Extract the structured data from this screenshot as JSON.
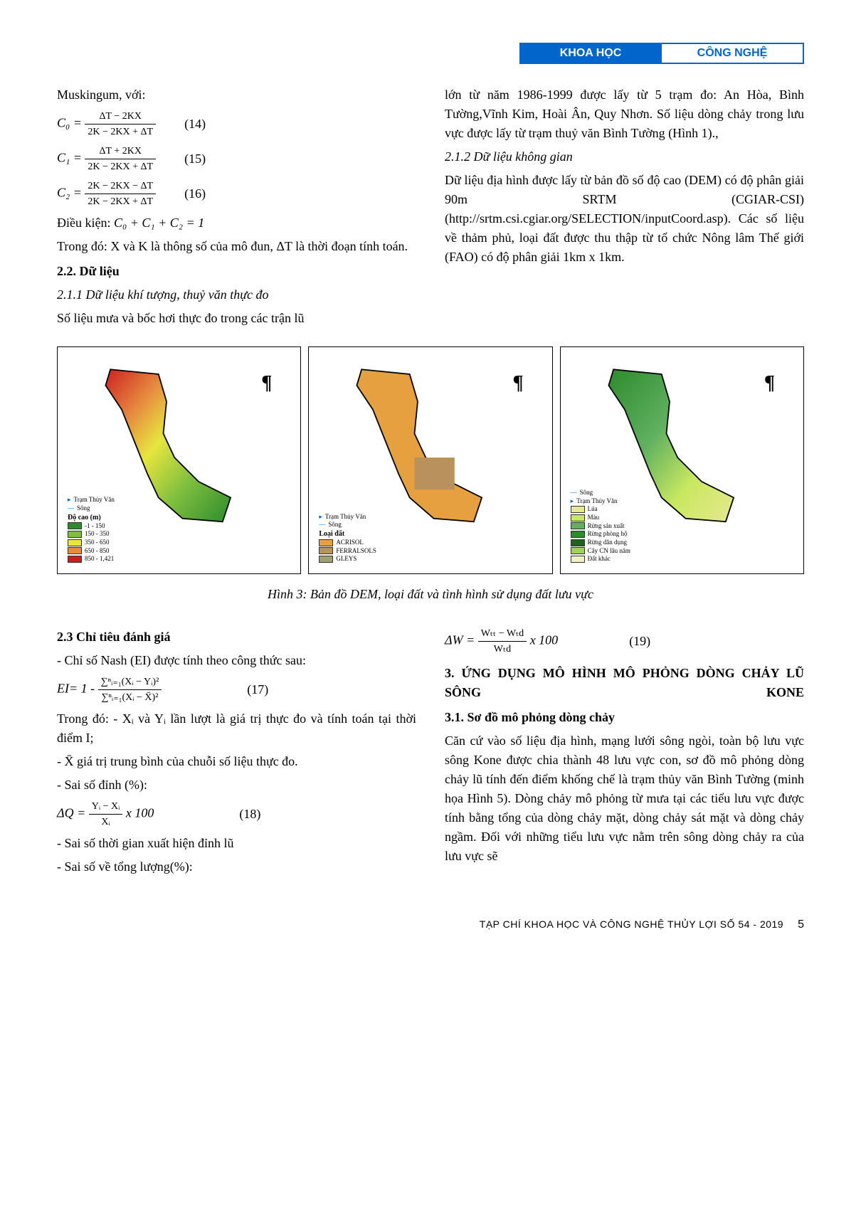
{
  "header": {
    "left": "KHOA HỌC",
    "right": "CÔNG NGHỆ",
    "bg_left": "#0066cc",
    "bg_right": "#ffffff",
    "border_color": "#0066cc"
  },
  "top_left_column": {
    "intro": "Muskingum, với:",
    "eq14": {
      "lhs": "C₀ =",
      "num": "ΔT − 2KX",
      "den": "2K − 2KX + ΔT",
      "n": "(14)"
    },
    "eq15": {
      "lhs": "C₁ =",
      "num": "ΔT + 2KX",
      "den": "2K − 2KX + ΔT",
      "n": "(15)"
    },
    "eq16": {
      "lhs": "C₂ =",
      "num": "2K − 2KX − ΔT",
      "den": "2K − 2KX + ΔT",
      "n": "(16)"
    },
    "condition_label": "Điều kiện:",
    "condition": "C₀ + C₁ + C₂ = 1",
    "where": "Trong đó: X và K là thông số của mô đun, ΔT là thời đoạn tính toán.",
    "sec22": "2.2. Dữ liệu",
    "sub211": "2.1.1 Dữ liệu khí tượng, thuỷ văn thực đo",
    "p211": "Số liệu mưa và bốc hơi thực đo trong các trận lũ"
  },
  "top_right_column": {
    "p1": "lớn từ năm 1986-1999 được lấy từ 5 trạm đo: An Hòa, Bình Tường,Vĩnh Kim, Hoài Ân, Quy Nhơn. Số liệu dòng chảy trong lưu vực được lấy từ trạm thuỷ văn Bình Tường (Hình 1).,",
    "sub212": "2.1.2 Dữ liệu không gian",
    "p212": "Dữ liệu địa hình được lấy từ bản đồ số độ cao (DEM) có độ phân giải 90m SRTM (CGIAR-CSI) (http://srtm.csi.cgiar.org/SELECTION/inputCoord.asp). Các số liệu về thảm phủ, loại đất được thu thập từ tổ chức Nông lâm Thế giới (FAO) có độ phân giải 1km x 1km."
  },
  "figure": {
    "caption": "Hình 3: Bản đồ DEM, loại đất và tình hình sử dụng đất lưu vực",
    "panels": [
      {
        "type": "dem_map",
        "legend_title": "Độ cao (m)",
        "legend_extra": [
          "Trạm Thủy Văn",
          "Sông"
        ],
        "items": [
          {
            "label": "-1 - 150",
            "color": "#2d8b2d"
          },
          {
            "label": "150 - 350",
            "color": "#7fbf3f"
          },
          {
            "label": "350 - 650",
            "color": "#e6e63f"
          },
          {
            "label": "650 - 850",
            "color": "#e68a3f"
          },
          {
            "label": "850 - 1,421",
            "color": "#cc2020"
          }
        ],
        "main_colors": [
          "#cc2020",
          "#e68a3f",
          "#e6e63f",
          "#7fbf3f",
          "#2d8b2d"
        ]
      },
      {
        "type": "soil_map",
        "legend_title": "Loại đất",
        "legend_extra": [
          "Trạm Thủy Văn",
          "Sông"
        ],
        "items": [
          {
            "label": "ACRISOL",
            "color": "#e6a040"
          },
          {
            "label": "FERRALSOLS",
            "color": "#b8915c"
          },
          {
            "label": "GLEYS",
            "color": "#a0a070"
          }
        ],
        "main_colors": [
          "#e6a040",
          "#b8915c"
        ]
      },
      {
        "type": "landuse_map",
        "legend_title": "",
        "legend_extra": [
          "Sông",
          "Trạm Thủy Văn"
        ],
        "items": [
          {
            "label": "Lúa",
            "color": "#e8e890"
          },
          {
            "label": "Màu",
            "color": "#c8e860"
          },
          {
            "label": "Rừng sản xuất",
            "color": "#60b060"
          },
          {
            "label": "Rừng phòng hộ",
            "color": "#2d8b2d"
          },
          {
            "label": "Rừng dân dụng",
            "color": "#206020"
          },
          {
            "label": "Cây CN lâu năm",
            "color": "#a0d060"
          },
          {
            "label": "Đất khác",
            "color": "#f0f0c0"
          }
        ],
        "main_colors": [
          "#2d8b2d",
          "#60b060",
          "#c8e860",
          "#e8e890"
        ]
      }
    ]
  },
  "bottom_left_column": {
    "sec23": "2.3 Chỉ tiêu đánh giá",
    "nash_intro": "- Chỉ số Nash (EI) được tính theo công       thức sau:",
    "eq17": {
      "lhs": "EI= 1 -",
      "num": "∑ⁿᵢ₌₁(Xᵢ − Yᵢ)²",
      "den": "∑ⁿᵢ₌₁(Xᵢ − X̄)²",
      "n": "(17)"
    },
    "where1": "Trong đó: - Xᵢ và Yᵢ lần lượt là giá trị thực đo và tính toán tại thời điểm I;",
    "where2": "- X̄ giá trị trung bình của chuỗi số liệu thực đo.",
    "peak_err": "-  Sai số đỉnh (%):",
    "eq18": {
      "lhs": "ΔQ =",
      "num": "Yᵢ − Xᵢ",
      "den": "Xᵢ",
      "tail": " x 100",
      "n": "(18)"
    },
    "time_err": "- Sai số thời gian xuất hiện đỉnh lũ",
    "vol_err": "- Sai số về tổng lượng(%):"
  },
  "bottom_right_column": {
    "eq19": {
      "lhs": "ΔW =",
      "num": "Wₜₜ − Wₜd",
      "den": "Wₜd",
      "tail": "x 100",
      "n": "(19)"
    },
    "sec3": "3. ỨNG DỤNG MÔ HÌNH MÔ PHỎNG DÒNG CHẢY  LŨ SÔNG KONE",
    "sec31": "3.1. Sơ đồ mô phỏng dòng chảy",
    "p31": "Căn cứ vào số liệu địa hình, mạng lưới sông ngòi, toàn bộ lưu vực sông Kone được chia thành 48 lưu vực con, sơ đồ mô phỏng dòng chảy lũ tính đến điểm khống chế là trạm thủy văn Bình Tường (minh họa Hình 5). Dòng chảy mô phỏng từ mưa tại các tiểu lưu vực được tính bằng tổng của dòng chảy mặt, dòng chảy sát mặt và dòng chảy ngầm. Đối với những tiểu lưu vực nằm trên sông dòng chảy ra của lưu vực sẽ"
  },
  "footer": {
    "text": "TẠP CHÍ KHOA HỌC VÀ CÔNG NGHỆ THỦY LỢI SỐ 54 - 2019",
    "page": "5"
  }
}
